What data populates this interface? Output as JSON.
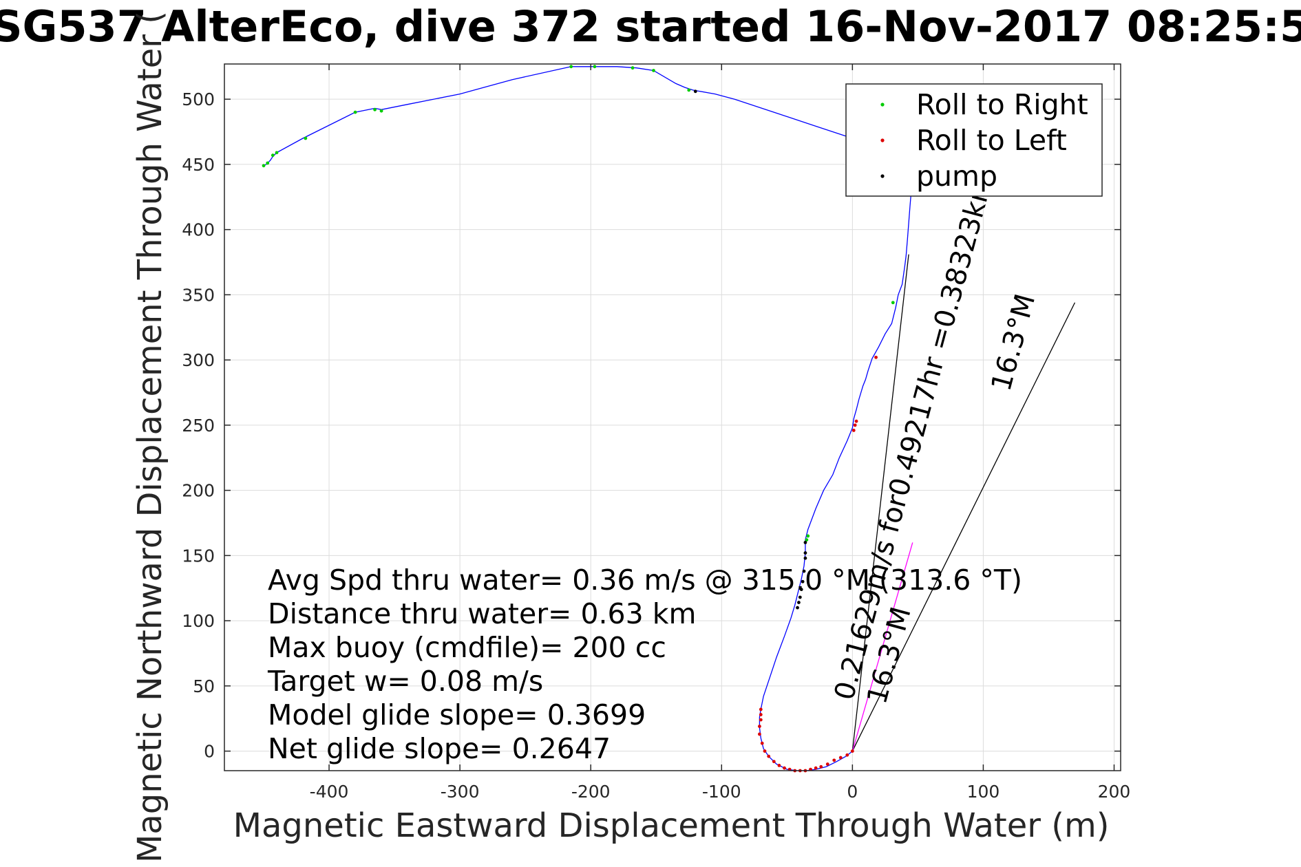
{
  "chart_data": {
    "type": "line",
    "title": "SG537 AlterEco, dive 372 started 16-Nov-2017 08:25:5",
    "xlabel": "Magnetic Eastward Displacement Through Water (m)",
    "ylabel": "Magnetic Northward Displacement Through Water (",
    "xlim": [
      -480,
      205
    ],
    "ylim": [
      -15,
      527
    ],
    "xticks": [
      -400,
      -300,
      -200,
      -100,
      0,
      100,
      200
    ],
    "yticks": [
      0,
      50,
      100,
      150,
      200,
      250,
      300,
      350,
      400,
      450,
      500
    ],
    "grid": true,
    "legend_position": "top-right",
    "colors": {
      "track": "#0000ff",
      "roll_right": "#00cc00",
      "roll_left": "#dd0000",
      "pump": "#000000",
      "current": "#ff00ff",
      "vector": "#000000"
    },
    "track": {
      "x": [
        0,
        -5,
        -12,
        -20,
        -28,
        -35,
        -42,
        -50,
        -58,
        -64,
        -68,
        -70,
        -71,
        -71,
        -70,
        -68,
        -62,
        -58,
        -52,
        -47,
        -44,
        -42,
        -39,
        -37,
        -36,
        -36,
        -34,
        -28,
        -22,
        -15,
        -10,
        -4,
        0,
        1,
        3,
        5,
        8,
        10,
        12,
        15,
        20,
        25,
        30,
        33,
        35,
        38,
        39,
        40,
        41,
        42,
        43,
        44,
        45,
        43,
        40,
        30,
        15,
        0,
        -30,
        -60,
        -90,
        -105,
        -122,
        -128,
        -135,
        -152,
        -165,
        -180,
        -197,
        -215,
        -260,
        -300,
        -340,
        -360,
        -365,
        -380,
        -420,
        -440,
        -443,
        -445,
        -448,
        -450
      ],
      "y": [
        0,
        -4,
        -8,
        -12,
        -14,
        -15,
        -15,
        -14,
        -10,
        -4,
        2,
        10,
        18,
        26,
        32,
        42,
        60,
        72,
        88,
        102,
        112,
        120,
        132,
        142,
        152,
        162,
        170,
        186,
        200,
        212,
        225,
        238,
        248,
        255,
        262,
        270,
        280,
        285,
        292,
        301,
        310,
        320,
        328,
        340,
        350,
        358,
        365,
        372,
        380,
        392,
        405,
        418,
        430,
        443,
        452,
        460,
        465,
        470,
        480,
        490,
        500,
        504,
        507,
        509,
        512,
        522,
        524,
        525,
        525,
        525,
        515,
        504,
        496,
        492,
        493,
        490,
        470,
        459,
        456,
        453,
        450,
        449
      ]
    },
    "series": [
      {
        "name": "Roll to Right",
        "x": [
          -450,
          -447,
          -443,
          -440,
          -418,
          -380,
          -365,
          -360,
          -215,
          -197,
          -168,
          -152,
          -125,
          -35,
          -34,
          31
        ],
        "y": [
          449,
          451,
          457,
          459,
          470,
          490,
          492,
          491,
          525,
          525,
          524,
          522,
          507,
          162,
          165,
          344
        ]
      },
      {
        "name": "Roll to Left",
        "x": [
          -70,
          -70,
          -70,
          -71,
          -71,
          -69,
          -67,
          -64,
          -60,
          -56,
          -52,
          -48,
          -44,
          -40,
          -36,
          -32,
          -28,
          -24,
          -19,
          -14,
          -9,
          -4,
          0,
          1,
          2,
          3,
          18
        ],
        "y": [
          32,
          28,
          24,
          19,
          13,
          6,
          0,
          -4,
          -8,
          -11,
          -13,
          -14,
          -15,
          -15,
          -15,
          -14,
          -13,
          -12,
          -10,
          -7,
          -5,
          -3,
          0,
          246,
          250,
          253,
          302
        ]
      },
      {
        "name": "pump",
        "x": [
          -36,
          -36,
          -36,
          -37,
          -38,
          -39,
          -40,
          -41,
          -42,
          -120
        ],
        "y": [
          160,
          152,
          148,
          138,
          130,
          124,
          118,
          114,
          110,
          506
        ]
      }
    ],
    "current_line": {
      "x": [
        0,
        46
      ],
      "y": [
        0,
        160
      ]
    },
    "heading_lines": [
      {
        "x": [
          0,
          43
        ],
        "y": [
          0,
          381
        ]
      },
      {
        "x": [
          0,
          170
        ],
        "y": [
          0,
          344
        ]
      }
    ],
    "annotations": [
      {
        "text": "0.21629m/s for0.49217hr =0.38323km",
        "x": 0,
        "y": 38,
        "angle_deg": 75
      },
      {
        "text": "16.3°M",
        "x": 25,
        "y": 35,
        "angle_deg": 75
      },
      {
        "text": "16.3°M",
        "x": 120,
        "y": 275,
        "angle_deg": 75
      }
    ],
    "stats": [
      "Avg Spd thru water=  0.36 m/s @ 315.0 °M (313.6 °T)",
      "Distance thru water=  0.63 km",
      "Max buoy (cmdfile)= 200 cc",
      "Target w= 0.08 m/s",
      "Model glide slope= 0.3699",
      "Net glide slope= 0.2647"
    ]
  }
}
